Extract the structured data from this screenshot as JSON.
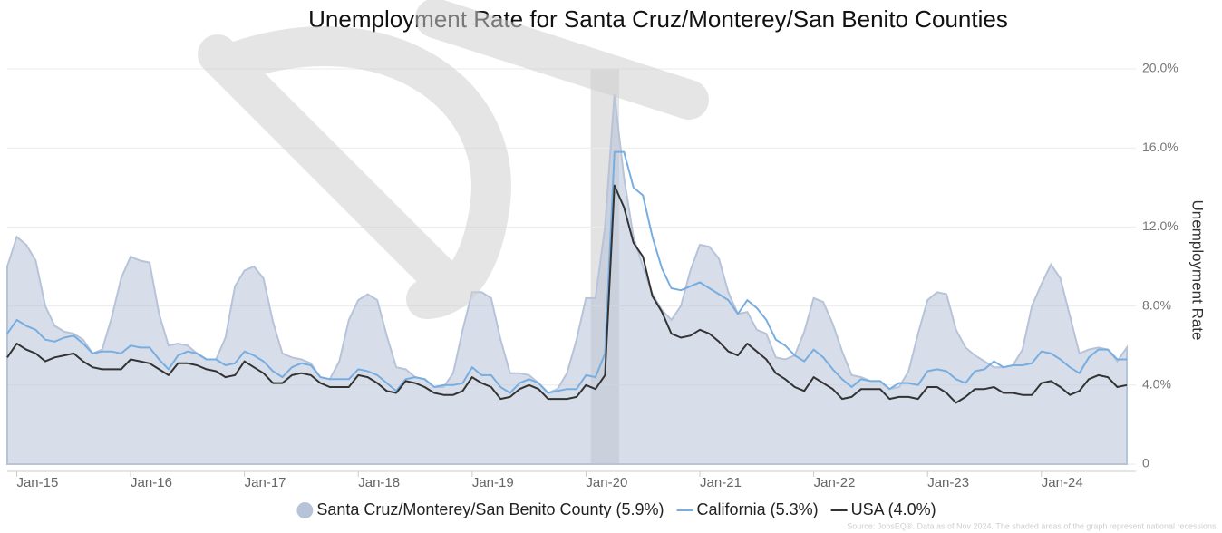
{
  "chart_data": {
    "type": "line",
    "title": "Unemployment Rate for Santa Cruz/Monterey/San Benito Counties",
    "y_label": "Unemployment Rate",
    "source": "Source: JobsEQ®. Data as of Nov 2024. The shaded areas of the graph represent national recessions.",
    "x": [
      "2014-12",
      "2015-01",
      "2015-02",
      "2015-03",
      "2015-04",
      "2015-05",
      "2015-06",
      "2015-07",
      "2015-08",
      "2015-09",
      "2015-10",
      "2015-11",
      "2015-12",
      "2016-01",
      "2016-02",
      "2016-03",
      "2016-04",
      "2016-05",
      "2016-06",
      "2016-07",
      "2016-08",
      "2016-09",
      "2016-10",
      "2016-11",
      "2016-12",
      "2017-01",
      "2017-02",
      "2017-03",
      "2017-04",
      "2017-05",
      "2017-06",
      "2017-07",
      "2017-08",
      "2017-09",
      "2017-10",
      "2017-11",
      "2017-12",
      "2018-01",
      "2018-02",
      "2018-03",
      "2018-04",
      "2018-05",
      "2018-06",
      "2018-07",
      "2018-08",
      "2018-09",
      "2018-10",
      "2018-11",
      "2018-12",
      "2019-01",
      "2019-02",
      "2019-03",
      "2019-04",
      "2019-05",
      "2019-06",
      "2019-07",
      "2019-08",
      "2019-09",
      "2019-10",
      "2019-11",
      "2019-12",
      "2020-01",
      "2020-02",
      "2020-03",
      "2020-04",
      "2020-05",
      "2020-06",
      "2020-07",
      "2020-08",
      "2020-09",
      "2020-10",
      "2020-11",
      "2020-12",
      "2021-01",
      "2021-02",
      "2021-03",
      "2021-04",
      "2021-05",
      "2021-06",
      "2021-07",
      "2021-08",
      "2021-09",
      "2021-10",
      "2021-11",
      "2021-12",
      "2022-01",
      "2022-02",
      "2022-03",
      "2022-04",
      "2022-05",
      "2022-06",
      "2022-07",
      "2022-08",
      "2022-09",
      "2022-10",
      "2022-11",
      "2022-12",
      "2023-01",
      "2023-02",
      "2023-03",
      "2023-04",
      "2023-05",
      "2023-06",
      "2023-07",
      "2023-08",
      "2023-09",
      "2023-10",
      "2023-11",
      "2023-12",
      "2024-01",
      "2024-02",
      "2024-03",
      "2024-04",
      "2024-05",
      "2024-06",
      "2024-07",
      "2024-08",
      "2024-09",
      "2024-10"
    ],
    "xlim": [
      "2014-12",
      "2024-10"
    ],
    "xticks": [
      {
        "value": "2015-01",
        "label": "Jan-15"
      },
      {
        "value": "2016-01",
        "label": "Jan-16"
      },
      {
        "value": "2017-01",
        "label": "Jan-17"
      },
      {
        "value": "2018-01",
        "label": "Jan-18"
      },
      {
        "value": "2019-01",
        "label": "Jan-19"
      },
      {
        "value": "2020-01",
        "label": "Jan-20"
      },
      {
        "value": "2021-01",
        "label": "Jan-21"
      },
      {
        "value": "2022-01",
        "label": "Jan-22"
      },
      {
        "value": "2023-01",
        "label": "Jan-23"
      },
      {
        "value": "2024-01",
        "label": "Jan-24"
      }
    ],
    "ylim": [
      0,
      20
    ],
    "yticks": [
      0,
      {
        "value": 4,
        "label": "4.0%"
      },
      {
        "value": 8,
        "label": "8.0%"
      },
      {
        "value": 12,
        "label": "12.0%"
      },
      {
        "value": 16,
        "label": "16.0%"
      },
      {
        "value": 20,
        "label": "20.0%"
      }
    ],
    "grid": true,
    "recessions": [
      {
        "start": "2020-02",
        "end": "2020-04"
      }
    ],
    "series": [
      {
        "name": "Santa Cruz/Monterey/San Benito County (5.9%)",
        "kind": "area",
        "color": "#b7c3d9",
        "values": [
          10.0,
          11.5,
          11.1,
          10.3,
          8.0,
          7.0,
          6.7,
          6.6,
          6.3,
          5.6,
          5.8,
          7.4,
          9.4,
          10.5,
          10.3,
          10.2,
          7.6,
          6.0,
          6.1,
          6.0,
          5.6,
          5.3,
          5.3,
          6.4,
          9.0,
          9.8,
          10.0,
          9.4,
          7.2,
          5.6,
          5.4,
          5.3,
          5.1,
          4.4,
          4.3,
          5.2,
          7.3,
          8.3,
          8.6,
          8.3,
          6.5,
          4.9,
          4.8,
          4.4,
          4.3,
          3.9,
          3.9,
          4.6,
          6.8,
          8.7,
          8.7,
          8.4,
          6.3,
          4.6,
          4.6,
          4.5,
          4.1,
          3.6,
          3.8,
          4.6,
          6.3,
          8.4,
          8.4,
          12.0,
          18.7,
          14.5,
          11.5,
          10.0,
          8.6,
          7.8,
          7.3,
          8.0,
          9.8,
          11.1,
          11.0,
          10.4,
          8.7,
          7.6,
          7.7,
          6.8,
          6.6,
          5.4,
          5.3,
          5.5,
          6.7,
          8.4,
          8.2,
          7.1,
          5.7,
          4.5,
          4.4,
          4.2,
          4.2,
          3.8,
          3.9,
          4.7,
          6.6,
          8.3,
          8.7,
          8.6,
          6.8,
          5.9,
          5.5,
          5.2,
          4.9,
          4.9,
          5.0,
          5.8,
          8.0,
          9.1,
          10.1,
          9.4,
          7.5,
          5.6,
          5.8,
          5.9,
          5.8,
          5.2,
          5.9
        ]
      },
      {
        "name": "California (5.3%)",
        "kind": "line",
        "color": "#78ade0",
        "values": [
          6.6,
          7.3,
          7.0,
          6.8,
          6.3,
          6.2,
          6.4,
          6.5,
          6.1,
          5.6,
          5.7,
          5.7,
          5.6,
          6.0,
          5.9,
          5.9,
          5.3,
          4.8,
          5.5,
          5.7,
          5.6,
          5.3,
          5.3,
          5.0,
          5.1,
          5.7,
          5.5,
          5.2,
          4.7,
          4.4,
          4.9,
          5.1,
          5.0,
          4.4,
          4.3,
          4.3,
          4.3,
          4.8,
          4.7,
          4.5,
          4.1,
          3.7,
          4.3,
          4.4,
          4.3,
          3.9,
          4.0,
          4.0,
          4.1,
          4.9,
          4.5,
          4.5,
          3.9,
          3.6,
          4.1,
          4.3,
          4.1,
          3.6,
          3.7,
          3.8,
          3.8,
          4.5,
          4.4,
          5.6,
          15.8,
          15.8,
          14.0,
          13.6,
          11.5,
          9.9,
          8.9,
          8.8,
          9.0,
          9.2,
          8.9,
          8.6,
          8.3,
          7.6,
          8.3,
          7.9,
          7.3,
          6.3,
          6.0,
          5.5,
          5.2,
          5.8,
          5.4,
          4.8,
          4.3,
          3.9,
          4.3,
          4.2,
          4.2,
          3.8,
          4.1,
          4.1,
          4.0,
          4.7,
          4.8,
          4.7,
          4.3,
          4.1,
          4.7,
          4.8,
          5.2,
          4.9,
          5.0,
          5.0,
          5.1,
          5.7,
          5.6,
          5.3,
          4.9,
          4.6,
          5.4,
          5.8,
          5.8,
          5.3,
          5.3
        ]
      },
      {
        "name": "USA (4.0%)",
        "kind": "line",
        "color": "#333333",
        "values": [
          5.4,
          6.1,
          5.8,
          5.6,
          5.2,
          5.4,
          5.5,
          5.6,
          5.2,
          4.9,
          4.8,
          4.8,
          4.8,
          5.3,
          5.2,
          5.1,
          4.8,
          4.5,
          5.1,
          5.1,
          5.0,
          4.8,
          4.7,
          4.4,
          4.5,
          5.2,
          4.9,
          4.6,
          4.1,
          4.1,
          4.5,
          4.6,
          4.5,
          4.1,
          3.9,
          3.9,
          3.9,
          4.5,
          4.4,
          4.1,
          3.7,
          3.6,
          4.2,
          4.1,
          3.9,
          3.6,
          3.5,
          3.5,
          3.7,
          4.4,
          4.1,
          3.9,
          3.3,
          3.4,
          3.8,
          4.0,
          3.8,
          3.3,
          3.3,
          3.3,
          3.4,
          4.0,
          3.8,
          4.5,
          14.1,
          13.0,
          11.2,
          10.5,
          8.5,
          7.7,
          6.6,
          6.4,
          6.5,
          6.8,
          6.6,
          6.2,
          5.7,
          5.5,
          6.1,
          5.7,
          5.3,
          4.6,
          4.3,
          3.9,
          3.7,
          4.4,
          4.1,
          3.8,
          3.3,
          3.4,
          3.8,
          3.8,
          3.8,
          3.3,
          3.4,
          3.4,
          3.3,
          3.9,
          3.9,
          3.6,
          3.1,
          3.4,
          3.8,
          3.8,
          3.9,
          3.6,
          3.6,
          3.5,
          3.5,
          4.1,
          4.2,
          3.9,
          3.5,
          3.7,
          4.3,
          4.5,
          4.4,
          3.9,
          4.0
        ]
      }
    ]
  }
}
